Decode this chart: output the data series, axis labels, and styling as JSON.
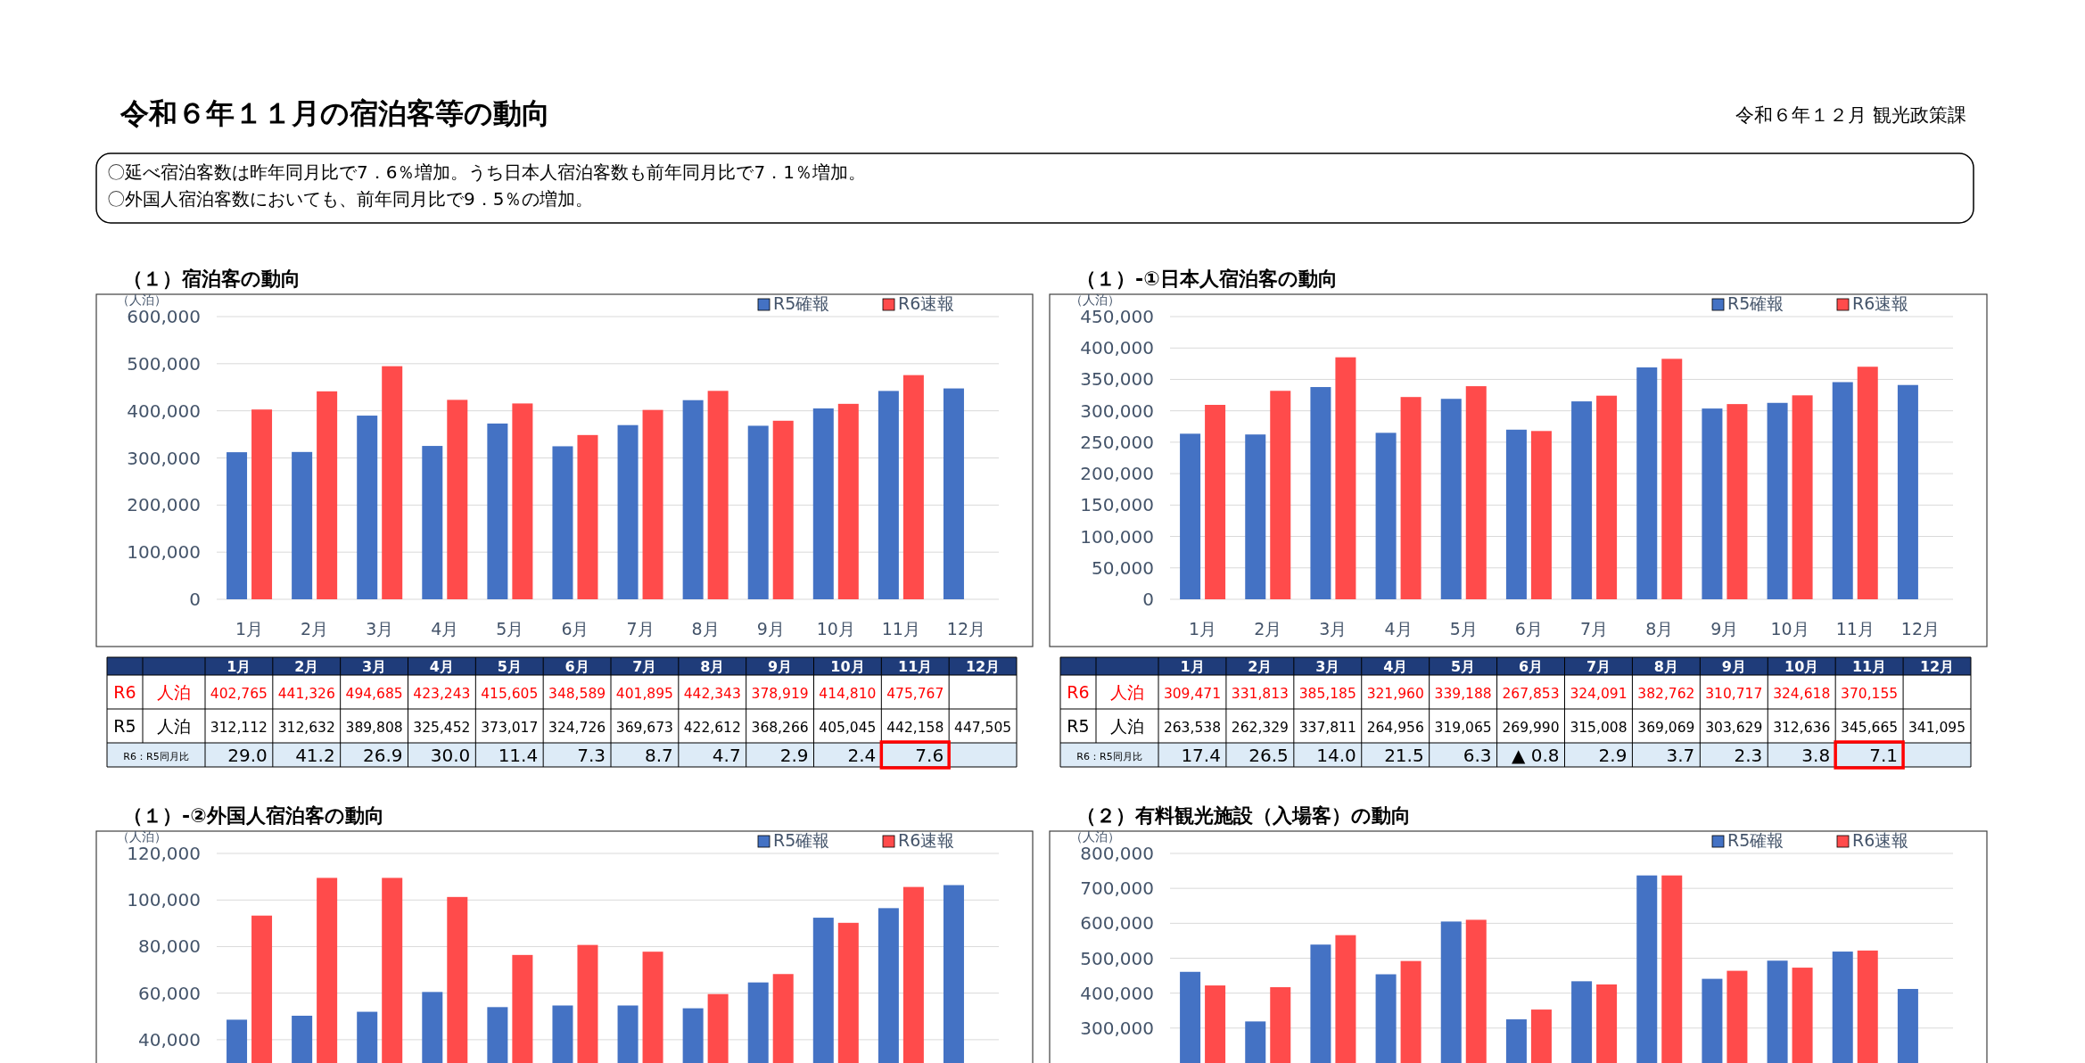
{
  "chart_data": [
    {
      "type": "other",
      "title": "令和６年１１月の宿泊客等の動向",
      "annotations": [
        "令和６年１２月  観光政策課",
        "〇延べ宿泊客数は昨年同月比で7．6％増加。うち日本人宿泊客数も前年同月比で7．1％増加。",
        "〇外国人宿泊客数においても、前年同月比で9．5％の増加。"
      ]
    },
    {
      "type": "bar",
      "title": "（１）宿泊客の動向",
      "ylabel": "（人泊）",
      "categories": [
        "1月",
        "2月",
        "3月",
        "4月",
        "5月",
        "6月",
        "7月",
        "8月",
        "9月",
        "10月",
        "11月",
        "12月"
      ],
      "series": [
        {
          "name": "R5確報",
          "color": "#4472c4",
          "values": [
            312112,
            312632,
            389808,
            325452,
            373017,
            324726,
            369673,
            422612,
            368266,
            405045,
            442158,
            447505
          ],
          "value_labels": [
            "312,112",
            "312,632",
            "389,808",
            "325,452",
            "373,017",
            "324,726",
            "369,673",
            "422,612",
            "368,266",
            "405,045",
            "442,158",
            "447,505"
          ]
        },
        {
          "name": "R6速報",
          "color": "#ff4b4b",
          "values": [
            402765,
            441326,
            494685,
            423243,
            415605,
            348589,
            401895,
            442343,
            378919,
            414810,
            475767,
            null
          ],
          "value_labels": [
            "402,765",
            "441,326",
            "494,685",
            "423,243",
            "415,605",
            "348,589",
            "401,895",
            "442,343",
            "378,919",
            "414,810",
            "475,767",
            null
          ]
        }
      ],
      "ylim": [
        0,
        600000
      ],
      "yticks": [
        0,
        {
          "value": 100000,
          "label": "100,000"
        },
        {
          "value": 200000,
          "label": "200,000"
        },
        {
          "value": 300000,
          "label": "300,000"
        },
        {
          "value": 400000,
          "label": "400,000"
        },
        {
          "value": 500000,
          "label": "500,000"
        },
        {
          "value": 600000,
          "label": "600,000"
        }
      ],
      "grid": "y",
      "legend": "top right",
      "annotations": [
        "R6",
        "人泊",
        "R5",
        "人泊",
        "R6：R5同月比",
        "29.0",
        "41.2",
        "26.9",
        "30.0",
        "11.4",
        "7.3",
        "8.7",
        "4.7",
        "2.9",
        "2.4",
        "7.6"
      ]
    },
    {
      "type": "bar",
      "title": "（１）-①日本人宿泊客の動向",
      "ylabel": "（人泊）",
      "categories": [
        "1月",
        "2月",
        "3月",
        "4月",
        "5月",
        "6月",
        "7月",
        "8月",
        "9月",
        "10月",
        "11月",
        "12月"
      ],
      "series": [
        {
          "name": "R5確報",
          "color": "#4472c4",
          "values": [
            263538,
            262329,
            337811,
            264956,
            319065,
            269990,
            315008,
            369069,
            303629,
            312636,
            345665,
            341095
          ],
          "value_labels": [
            "263,538",
            "262,329",
            "337,811",
            "264,956",
            "319,065",
            "269,990",
            "315,008",
            "369,069",
            "303,629",
            "312,636",
            "345,665",
            "341,095"
          ]
        },
        {
          "name": "R6速報",
          "color": "#ff4b4b",
          "values": [
            309471,
            331813,
            385185,
            321960,
            339188,
            267853,
            324091,
            382762,
            310717,
            324618,
            370155,
            null
          ],
          "value_labels": [
            "309,471",
            "331,813",
            "385,185",
            "321,960",
            "339,188",
            "267,853",
            "324,091",
            "382,762",
            "310,717",
            "324,618",
            "370,155",
            null
          ]
        }
      ],
      "ylim": [
        0,
        450000
      ],
      "yticks": [
        0,
        {
          "value": 50000,
          "label": "50,000"
        },
        {
          "value": 100000,
          "label": "100,000"
        },
        {
          "value": 150000,
          "label": "150,000"
        },
        {
          "value": 200000,
          "label": "200,000"
        },
        {
          "value": 250000,
          "label": "250,000"
        },
        {
          "value": 300000,
          "label": "300,000"
        },
        {
          "value": 350000,
          "label": "350,000"
        },
        {
          "value": 400000,
          "label": "400,000"
        },
        {
          "value": 450000,
          "label": "450,000"
        }
      ],
      "grid": "y",
      "legend": "top right",
      "annotations": [
        "R6",
        "人泊",
        "R5",
        "人泊",
        "R6：R5同月比",
        "17.4",
        "26.5",
        "14.0",
        "21.5",
        "6.3",
        "▲ 0.8",
        "2.9",
        "3.7",
        "2.3",
        "3.8",
        "7.1"
      ]
    },
    {
      "type": "bar",
      "title": "（１）-②外国人宿泊客の動向",
      "ylabel": "（人泊）",
      "categories": [
        null,
        null,
        null,
        null,
        null,
        null,
        null,
        null,
        null,
        null,
        null,
        null
      ],
      "series": [
        {
          "name": "R5確報",
          "color": "#4472c4",
          "values": [
            48600,
            50300,
            52000,
            60500,
            54000,
            54700,
            54700,
            53500,
            64600,
            92400,
            96500,
            106400
          ]
        },
        {
          "name": "R6速報",
          "color": "#ff4b4b",
          "values": [
            93300,
            109500,
            109500,
            101300,
            76400,
            80700,
            77800,
            59600,
            68200,
            90200,
            105600,
            null
          ]
        }
      ],
      "ylim": [
        30000,
        120000
      ],
      "yticks": [
        {
          "value": 40000,
          "label": "40,000"
        },
        {
          "value": 60000,
          "label": "60,000"
        },
        {
          "value": 80000,
          "label": "80,000"
        },
        {
          "value": 100000,
          "label": "100,000"
        },
        {
          "value": 120000,
          "label": "120,000"
        }
      ],
      "grid": "y",
      "legend": "top right"
    },
    {
      "type": "bar",
      "title": "（２）有料観光施設（入場客）の動向",
      "ylabel": "（人泊）",
      "categories": [
        null,
        null,
        null,
        null,
        null,
        null,
        null,
        null,
        null,
        null,
        null,
        null
      ],
      "series": [
        {
          "name": "R5確報",
          "color": "#4472c4",
          "values": [
            461000,
            319000,
            539000,
            454000,
            605000,
            325000,
            434000,
            737000,
            441000,
            493000,
            519000,
            412000
          ]
        },
        {
          "name": "R6速報",
          "color": "#ff4b4b",
          "values": [
            422000,
            417000,
            566000,
            492000,
            610000,
            353000,
            425000,
            737000,
            464000,
            473000,
            522000,
            null
          ]
        }
      ],
      "ylim": [
        200000,
        800000
      ],
      "yticks": [
        {
          "value": 300000,
          "label": "300,000"
        },
        {
          "value": 400000,
          "label": "400,000"
        },
        {
          "value": 500000,
          "label": "500,000"
        },
        {
          "value": 600000,
          "label": "600,000"
        },
        {
          "value": 700000,
          "label": "700,000"
        },
        {
          "value": 800000,
          "label": "800,000"
        }
      ],
      "grid": "y",
      "legend": "top right"
    }
  ]
}
